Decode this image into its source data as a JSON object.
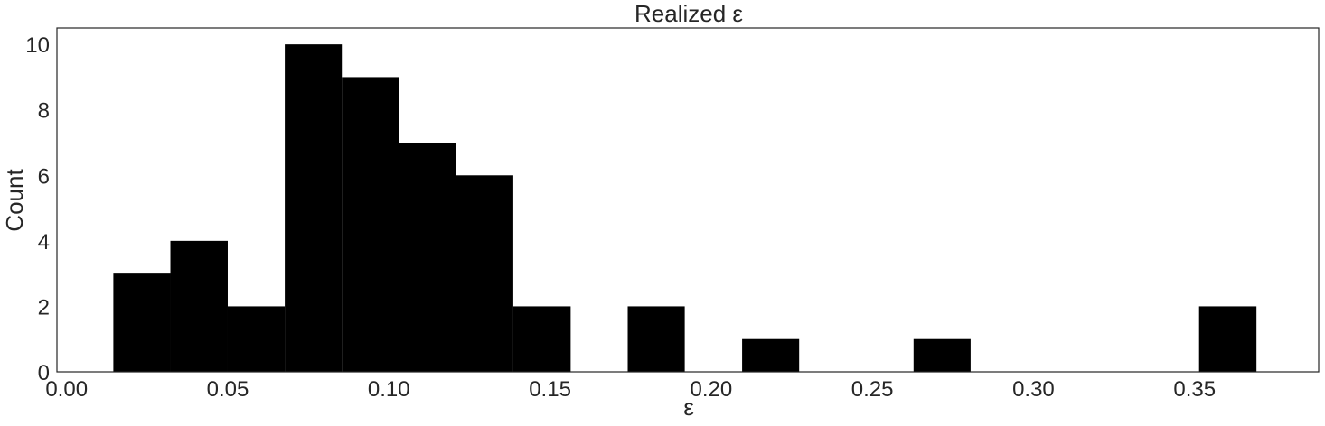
{
  "chart_data": {
    "type": "bar",
    "title": "Realized ε",
    "xlabel": "ε",
    "ylabel": "Count",
    "bin_edges": [
      0.0145,
      0.0322,
      0.05,
      0.0677,
      0.0854,
      0.1032,
      0.1209,
      0.1386,
      0.1564,
      0.1741,
      0.1918,
      0.2096,
      0.2273,
      0.245,
      0.2628,
      0.2805,
      0.2982,
      0.316,
      0.3337,
      0.3514,
      0.3692
    ],
    "values": [
      3,
      4,
      2,
      10,
      9,
      7,
      6,
      2,
      0,
      2,
      0,
      1,
      0,
      0,
      1,
      0,
      0,
      0,
      0,
      2
    ],
    "xlim": [
      -0.003,
      0.3885
    ],
    "ylim": [
      0,
      10.5
    ],
    "xticks": [
      0.0,
      0.05,
      0.1,
      0.15,
      0.2,
      0.25,
      0.3,
      0.35
    ],
    "xtick_labels": [
      "0.00",
      "0.05",
      "0.10",
      "0.15",
      "0.20",
      "0.25",
      "0.30",
      "0.35"
    ],
    "yticks": [
      0,
      2,
      4,
      6,
      8,
      10
    ],
    "ytick_labels": [
      "0",
      "2",
      "4",
      "6",
      "8",
      "10"
    ],
    "grid": false,
    "bar_color": "#000000",
    "frame_color": "#262626"
  }
}
